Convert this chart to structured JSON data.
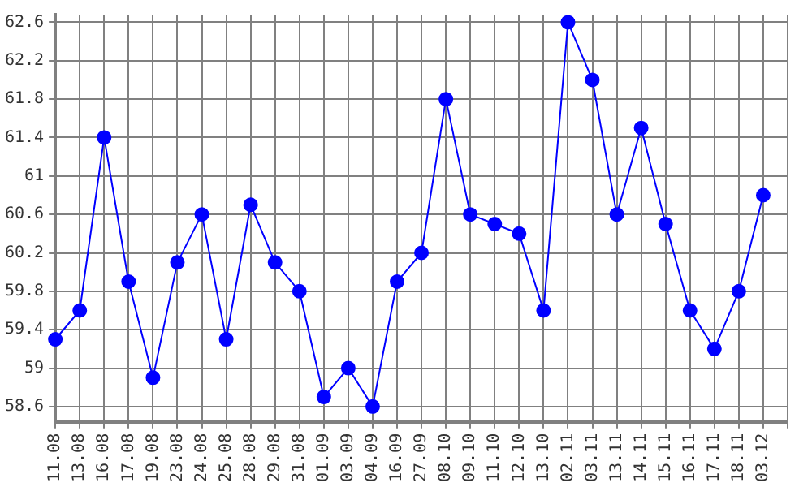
{
  "chart_data": {
    "type": "line",
    "categories": [
      "11.08",
      "13.08",
      "16.08",
      "17.08",
      "19.08",
      "23.08",
      "24.08",
      "25.08",
      "28.08",
      "29.08",
      "31.08",
      "01.09",
      "03.09",
      "04.09",
      "16.09",
      "27.09",
      "08.10",
      "09.10",
      "11.10",
      "12.10",
      "13.10",
      "02.11",
      "03.11",
      "13.11",
      "14.11",
      "15.11",
      "16.11",
      "17.11",
      "18.11",
      "03.12",
      null
    ],
    "series": [
      {
        "color": "#0000ff",
        "values": [
          59.3,
          59.6,
          61.4,
          59.9,
          58.9,
          60.1,
          60.6,
          59.3,
          60.7,
          60.1,
          59.8,
          58.7,
          59.0,
          58.6,
          59.9,
          60.2,
          61.8,
          60.6,
          60.5,
          60.4,
          59.6,
          62.6,
          62.0,
          60.6,
          61.5,
          60.5,
          59.6,
          59.2,
          59.8,
          60.8,
          null
        ]
      }
    ],
    "ylim": [
      58.44,
      62.68
    ],
    "yticks": [
      58.6,
      59,
      59.4,
      59.8,
      60.2,
      60.6,
      61,
      61.4,
      61.8,
      62.2,
      62.6
    ],
    "grid": true,
    "legend": false,
    "marker": "circle",
    "line_style": "solid"
  }
}
